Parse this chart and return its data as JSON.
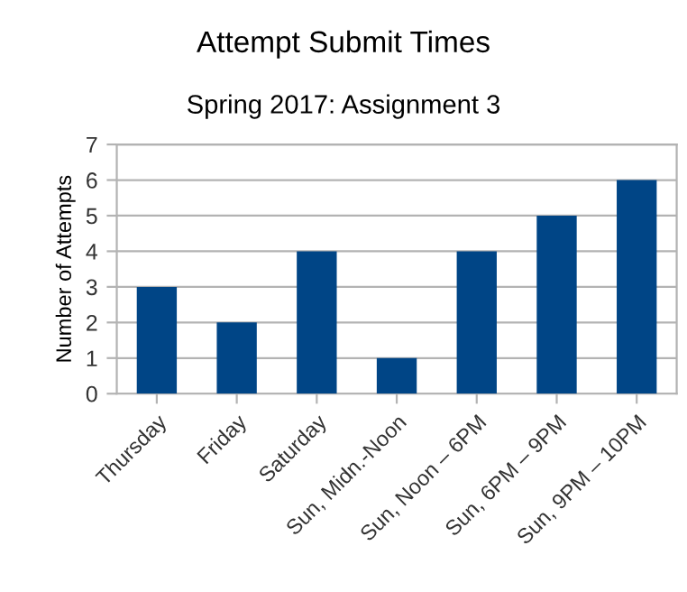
{
  "chart_data": {
    "type": "bar",
    "title": "Attempt Submit Times",
    "subtitle": "Spring 2017: Assignment 3",
    "ylabel": "Number of Attempts",
    "categories": [
      "Thursday",
      "Friday",
      "Saturday",
      "Sun, Midn.-Noon",
      "Sun, Noon – 6PM",
      "Sun, 6PM – 9PM",
      "Sun, 9PM – 10PM"
    ],
    "values": [
      3,
      2,
      4,
      1,
      4,
      5,
      6
    ],
    "color": "#004586",
    "ylim": [
      0,
      7
    ],
    "yticks": [
      0,
      1,
      2,
      3,
      4,
      5,
      6,
      7
    ],
    "grid": "y",
    "legend": false
  }
}
